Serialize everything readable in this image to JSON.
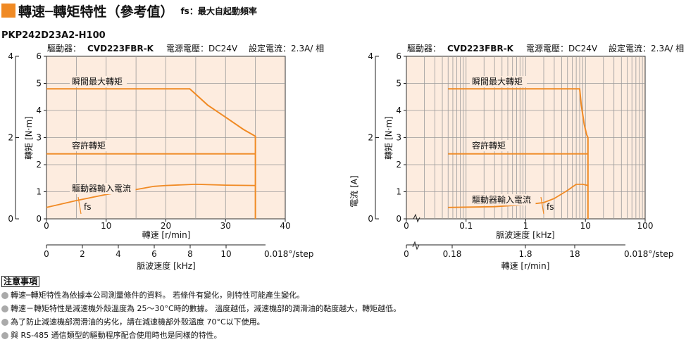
{
  "header": {
    "title": "轉速─轉矩特性（參考值）",
    "subtitle": "fs：最大自起動頻率"
  },
  "model": "PKP242D23A2-H100",
  "colors": {
    "accent": "#f08a24",
    "plot_bg": "#fdecdf",
    "line": "#f08a24"
  },
  "chart_data": [
    {
      "type": "line",
      "info": {
        "driver_label": "驅動器：",
        "driver": "CVD223FBR-K",
        "voltage": "電源電壓：DC24V",
        "current": "設定電流：2.3A/ 相"
      },
      "axes": {
        "y_torque": {
          "label": "轉矩 [N·m]",
          "range": [
            0,
            6
          ],
          "ticks": [
            "0",
            "1",
            "2",
            "3",
            "4",
            "5",
            "6"
          ]
        },
        "y_current": {
          "label": "電流 [A]",
          "range": [
            0,
            4
          ],
          "ticks": [
            "0",
            "2",
            "4"
          ]
        },
        "x_speed": {
          "label": "轉速 [r/min]",
          "range": [
            0,
            40
          ],
          "ticks": [
            "0",
            "10",
            "20",
            "30",
            "40"
          ]
        },
        "x_pulse": {
          "label": "脈波速度 [kHz]",
          "range": [
            0,
            12
          ],
          "ticks": [
            "0",
            "2",
            "4",
            "6",
            "8",
            "10"
          ],
          "extra_label": "0.018°/step"
        }
      },
      "grid": true,
      "series": [
        {
          "name": "瞬間最大轉矩",
          "x": [
            0,
            24,
            27,
            30,
            33,
            35,
            35
          ],
          "y": [
            4.8,
            4.8,
            4.2,
            3.75,
            3.3,
            3.05,
            0
          ]
        },
        {
          "name": "容許轉矩",
          "x": [
            0,
            35
          ],
          "y": [
            2.4,
            2.4
          ]
        },
        {
          "name": "驅動器輸入電流",
          "x": [
            0,
            5,
            10,
            15,
            18,
            20,
            25,
            30,
            35
          ],
          "y": [
            0.28,
            0.45,
            0.6,
            0.72,
            0.8,
            0.82,
            0.85,
            0.83,
            0.82
          ]
        }
      ],
      "annotations": [
        {
          "text": "fs"
        }
      ]
    },
    {
      "type": "line",
      "info": {
        "driver_label": "驅動器：",
        "driver": "CVD223FBR-K",
        "voltage": "電源電壓：DC24V",
        "current": "設定電流：2.3A/ 相"
      },
      "axes": {
        "y_torque": {
          "label": "轉矩 [N·m]",
          "range": [
            0,
            6
          ],
          "ticks": [
            "0",
            "1",
            "2",
            "3",
            "4",
            "5",
            "6"
          ]
        },
        "y_current": {
          "label": "電流 [A]",
          "range": [
            0,
            4
          ],
          "ticks": [
            "0",
            "2",
            "4"
          ]
        },
        "x_pulse": {
          "label": "脈波速度 [kHz]",
          "scale": "log",
          "range": [
            0.01,
            100
          ],
          "ticks": [
            "0",
            "0.1",
            "1",
            "10",
            "100"
          ]
        },
        "x_speed": {
          "label": "轉速 [r/min]",
          "ticks": [
            "0",
            "0.18",
            "1.8",
            "18"
          ],
          "extra_label": "0.018°/step"
        }
      },
      "grid": true,
      "series": [
        {
          "name": "瞬間最大轉矩",
          "x": [
            0.05,
            8,
            8.5,
            9.5,
            10.5,
            11,
            11
          ],
          "y": [
            4.8,
            4.8,
            4.2,
            3.5,
            3.1,
            3.0,
            0
          ]
        },
        {
          "name": "容許轉矩",
          "x": [
            0.05,
            11
          ],
          "y": [
            2.4,
            2.4
          ]
        },
        {
          "name": "驅動器輸入電流",
          "x": [
            0.05,
            0.3,
            1,
            2,
            3,
            5,
            7,
            9,
            11
          ],
          "y": [
            0.28,
            0.3,
            0.35,
            0.4,
            0.5,
            0.7,
            0.85,
            0.85,
            0.82
          ]
        }
      ],
      "annotations": [
        {
          "text": "fs"
        }
      ]
    }
  ],
  "notes": {
    "title": "注意事項",
    "items": [
      "轉速─轉矩特性為依據本公司測量條件的資料。 若條件有變化，則特性可能產生變化。",
      "轉速－轉矩特性是減速機外殼溫度為 25～30°C時的數據。 溫度越低，減速機部的潤滑油的黏度越大，轉矩越低。",
      "為了防止減速機部潤滑油的劣化，請在減速機部外殼溫度 70°C以下使用。",
      "與 RS-485 通信類型的驅動程序配合使用時也是同樣的特性。"
    ]
  }
}
